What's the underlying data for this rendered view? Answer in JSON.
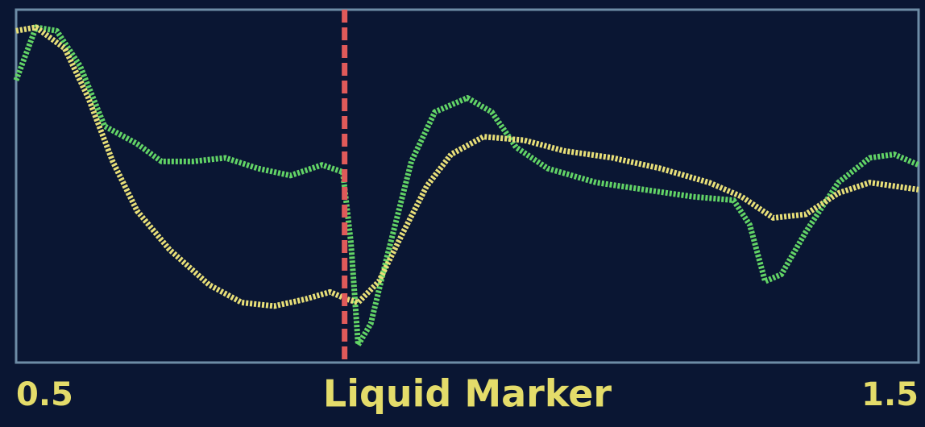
{
  "chart_data": {
    "type": "line",
    "xlabel": "Liquid Marker",
    "xlim": [
      0.5,
      1.5
    ],
    "xticks": [
      0.5,
      1.5
    ],
    "ylim": [
      0,
      1
    ],
    "frame_color": "#6d8ca6",
    "marker": {
      "x": 0.864,
      "color": "#e05a5a"
    },
    "series": [
      {
        "color": "#62d466",
        "x": [
          0.5,
          0.522,
          0.545,
          0.571,
          0.598,
          0.634,
          0.661,
          0.696,
          0.732,
          0.768,
          0.804,
          0.839,
          0.862,
          0.871,
          0.879,
          0.893,
          0.911,
          0.938,
          0.964,
          1.0,
          1.027,
          1.054,
          1.089,
          1.143,
          1.196,
          1.25,
          1.295,
          1.313,
          1.33,
          1.348,
          1.375,
          1.411,
          1.446,
          1.473,
          1.5
        ],
        "values": [
          0.8,
          0.95,
          0.94,
          0.84,
          0.67,
          0.62,
          0.57,
          0.57,
          0.58,
          0.55,
          0.53,
          0.56,
          0.54,
          0.34,
          0.05,
          0.11,
          0.3,
          0.57,
          0.71,
          0.75,
          0.71,
          0.61,
          0.55,
          0.51,
          0.49,
          0.47,
          0.46,
          0.39,
          0.23,
          0.25,
          0.37,
          0.51,
          0.58,
          0.59,
          0.56
        ]
      },
      {
        "color": "#e8df78",
        "x": [
          0.5,
          0.522,
          0.554,
          0.58,
          0.607,
          0.634,
          0.67,
          0.714,
          0.75,
          0.786,
          0.821,
          0.848,
          0.866,
          0.879,
          0.902,
          0.929,
          0.955,
          0.982,
          1.018,
          1.063,
          1.107,
          1.161,
          1.214,
          1.268,
          1.304,
          1.339,
          1.375,
          1.411,
          1.446,
          1.5
        ],
        "values": [
          0.94,
          0.95,
          0.89,
          0.75,
          0.57,
          0.43,
          0.32,
          0.22,
          0.17,
          0.16,
          0.18,
          0.2,
          0.18,
          0.17,
          0.23,
          0.37,
          0.5,
          0.59,
          0.64,
          0.63,
          0.6,
          0.58,
          0.55,
          0.51,
          0.47,
          0.41,
          0.42,
          0.48,
          0.51,
          0.49
        ]
      }
    ]
  }
}
